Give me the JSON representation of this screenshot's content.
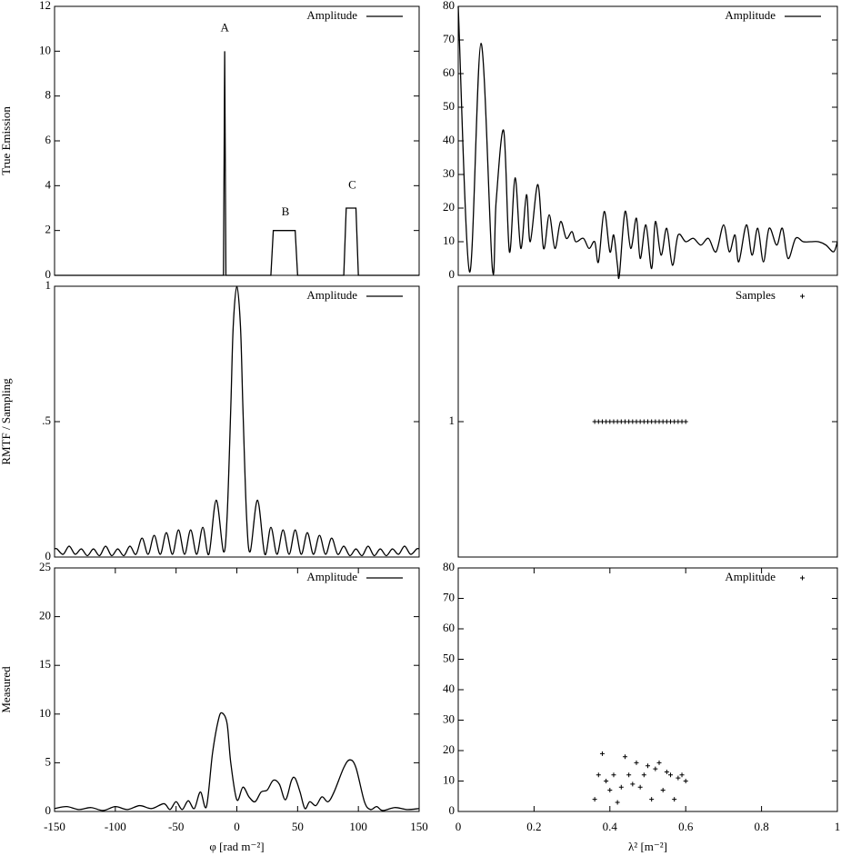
{
  "chart_data": [
    {
      "type": "line",
      "ylabel": "True Emission",
      "legend": "top-right",
      "x": [
        -150,
        -11,
        -10,
        -9,
        28,
        30,
        48,
        50,
        88,
        90,
        98,
        100,
        150
      ],
      "series": [
        {
          "name": "Amplitude",
          "color": "#000000",
          "values": [
            0,
            0,
            10,
            0,
            0,
            2,
            2,
            0,
            0,
            3,
            3,
            0,
            0
          ]
        }
      ],
      "xlim": [
        -150,
        150
      ],
      "ylim": [
        0,
        12
      ],
      "yticks": [
        0,
        2,
        4,
        6,
        8,
        10,
        12
      ],
      "annotations": [
        {
          "text": "A",
          "x": -10,
          "y": 11
        },
        {
          "text": "B",
          "x": 40,
          "y": 2.8
        },
        {
          "text": "C",
          "x": 95,
          "y": 4
        }
      ]
    },
    {
      "type": "line",
      "legend": "top-right",
      "smooth": true,
      "x": [
        0,
        0.03,
        0.06,
        0.09,
        0.1,
        0.12,
        0.135,
        0.15,
        0.165,
        0.18,
        0.19,
        0.21,
        0.225,
        0.24,
        0.255,
        0.27,
        0.285,
        0.3,
        0.31,
        0.33,
        0.345,
        0.36,
        0.37,
        0.385,
        0.4,
        0.41,
        0.42,
        0.425,
        0.44,
        0.455,
        0.47,
        0.48,
        0.495,
        0.51,
        0.52,
        0.535,
        0.55,
        0.565,
        0.58,
        0.6,
        0.62,
        0.64,
        0.66,
        0.68,
        0.7,
        0.715,
        0.73,
        0.74,
        0.76,
        0.775,
        0.79,
        0.805,
        0.82,
        0.84,
        0.855,
        0.87,
        0.89,
        0.91,
        0.93,
        0.95,
        0.97,
        0.99,
        1
      ],
      "series": [
        {
          "name": "Amplitude",
          "color": "#000000",
          "values": [
            80,
            1,
            69,
            2,
            22,
            43,
            7,
            29,
            8,
            24,
            10,
            27,
            8,
            18,
            8,
            16,
            11,
            13,
            10,
            11,
            8,
            10,
            4,
            19,
            7,
            12,
            3,
            0,
            19,
            8,
            17,
            5,
            15,
            2,
            16,
            6,
            14,
            3,
            12,
            10,
            11,
            9,
            11,
            7,
            15,
            7,
            12,
            4,
            15,
            6,
            14,
            4,
            14,
            9,
            14,
            5,
            11,
            10,
            10,
            10,
            9,
            7,
            10
          ]
        }
      ],
      "xlim": [
        0,
        1
      ],
      "ylim": [
        0,
        80
      ],
      "yticks": [
        0,
        10,
        20,
        30,
        40,
        50,
        60,
        70,
        80
      ]
    },
    {
      "type": "line",
      "ylabel": "RMTF / Sampling",
      "legend": "top-right",
      "smooth": true,
      "x": [
        -150,
        -148,
        -143,
        -138,
        -133,
        -128,
        -123,
        -118,
        -113,
        -108,
        -103,
        -98,
        -93,
        -88,
        -83,
        -78,
        -73,
        -68,
        -63,
        -58,
        -53,
        -48,
        -43,
        -38,
        -33,
        -28,
        -23,
        -17,
        -11,
        -8,
        -5,
        -3,
        0,
        3,
        5,
        8,
        11,
        17,
        23,
        28,
        33,
        38,
        43,
        48,
        53,
        58,
        63,
        68,
        73,
        78,
        83,
        88,
        93,
        98,
        103,
        108,
        113,
        118,
        123,
        128,
        133,
        138,
        143,
        148,
        150
      ],
      "series": [
        {
          "name": "Amplitude",
          "color": "#000000",
          "values": [
            0.03,
            0.03,
            0.01,
            0.04,
            0.01,
            0.03,
            0.005,
            0.03,
            0.005,
            0.04,
            0.005,
            0.03,
            0.005,
            0.04,
            0.01,
            0.07,
            0.01,
            0.08,
            0.01,
            0.09,
            0.01,
            0.1,
            0.01,
            0.1,
            0.01,
            0.11,
            0.01,
            0.21,
            0.02,
            0.15,
            0.55,
            0.85,
            1,
            0.85,
            0.55,
            0.15,
            0.02,
            0.21,
            0.01,
            0.11,
            0.01,
            0.1,
            0.01,
            0.1,
            0.01,
            0.09,
            0.01,
            0.08,
            0.01,
            0.07,
            0.01,
            0.04,
            0.005,
            0.03,
            0.005,
            0.04,
            0.005,
            0.03,
            0.005,
            0.03,
            0.01,
            0.04,
            0.01,
            0.03,
            0.03
          ]
        }
      ],
      "xlim": [
        -150,
        150
      ],
      "ylim": [
        0,
        1
      ],
      "yticks": [
        0,
        {
          "value": 0.5,
          "label": ".5"
        },
        1
      ]
    },
    {
      "type": "scatter",
      "legend": "top-right",
      "x": [
        0.36,
        0.37,
        0.38,
        0.39,
        0.4,
        0.41,
        0.42,
        0.43,
        0.44,
        0.45,
        0.46,
        0.47,
        0.48,
        0.49,
        0.5,
        0.51,
        0.52,
        0.53,
        0.54,
        0.55,
        0.56,
        0.57,
        0.58,
        0.59,
        0.6
      ],
      "series": [
        {
          "name": "Samples",
          "color": "#000000",
          "values": [
            1,
            1,
            1,
            1,
            1,
            1,
            1,
            1,
            1,
            1,
            1,
            1,
            1,
            1,
            1,
            1,
            1,
            1,
            1,
            1,
            1,
            1,
            1,
            1,
            1
          ]
        }
      ],
      "xlim": [
        0,
        1
      ],
      "ylim": [
        0,
        2
      ],
      "yticks": [
        1
      ]
    },
    {
      "type": "line",
      "ylabel": "Measured",
      "xlabel": "φ [rad m⁻²]",
      "legend": "top-right",
      "smooth": true,
      "x": [
        -150,
        -140,
        -130,
        -120,
        -110,
        -100,
        -90,
        -80,
        -70,
        -60,
        -55,
        -50,
        -45,
        -40,
        -35,
        -30,
        -25,
        -20,
        -15,
        -12,
        -8,
        -5,
        0,
        5,
        10,
        15,
        20,
        25,
        30,
        35,
        40,
        45,
        48,
        52,
        56,
        60,
        65,
        70,
        75,
        80,
        88,
        93,
        98,
        105,
        110,
        115,
        120,
        130,
        140,
        150
      ],
      "series": [
        {
          "name": "Amplitude",
          "color": "#000000",
          "values": [
            0.3,
            0.5,
            0.2,
            0.4,
            0.1,
            0.5,
            0.2,
            0.6,
            0.3,
            0.8,
            0.2,
            1.0,
            0.2,
            1.1,
            0.3,
            2.0,
            0.5,
            6,
            9.5,
            10.1,
            9,
            5,
            1.2,
            2.5,
            1.5,
            1.0,
            2.0,
            2.2,
            3.2,
            2.8,
            1.2,
            3.2,
            3.4,
            2,
            0.3,
            1.0,
            0.6,
            1.5,
            1.0,
            2.0,
            4.5,
            5.3,
            4.5,
            1.0,
            0.2,
            0.5,
            0.1,
            0.4,
            0.2,
            0.3
          ]
        }
      ],
      "xlim": [
        -150,
        150
      ],
      "ylim": [
        0,
        25
      ],
      "yticks": [
        0,
        5,
        10,
        15,
        20,
        25
      ],
      "xticks": [
        -150,
        -100,
        -50,
        0,
        50,
        100,
        150
      ]
    },
    {
      "type": "scatter",
      "xlabel": "λ² [m⁻²]",
      "legend": "top-right",
      "x": [
        0.36,
        0.37,
        0.38,
        0.39,
        0.4,
        0.41,
        0.42,
        0.43,
        0.44,
        0.45,
        0.46,
        0.47,
        0.48,
        0.49,
        0.5,
        0.51,
        0.52,
        0.53,
        0.54,
        0.55,
        0.56,
        0.57,
        0.58,
        0.59,
        0.6
      ],
      "series": [
        {
          "name": "Amplitude",
          "color": "#000000",
          "values": [
            4,
            12,
            19,
            10,
            7,
            12,
            3,
            8,
            18,
            12,
            9,
            16,
            8,
            12,
            15,
            4,
            14,
            16,
            7,
            13,
            12,
            4,
            11,
            12,
            10
          ]
        }
      ],
      "xlim": [
        0,
        1
      ],
      "ylim": [
        0,
        80
      ],
      "yticks": [
        0,
        10,
        20,
        30,
        40,
        50,
        60,
        70,
        80
      ],
      "xticks": [
        0,
        0.2,
        0.4,
        0.6,
        0.8,
        1
      ]
    }
  ]
}
